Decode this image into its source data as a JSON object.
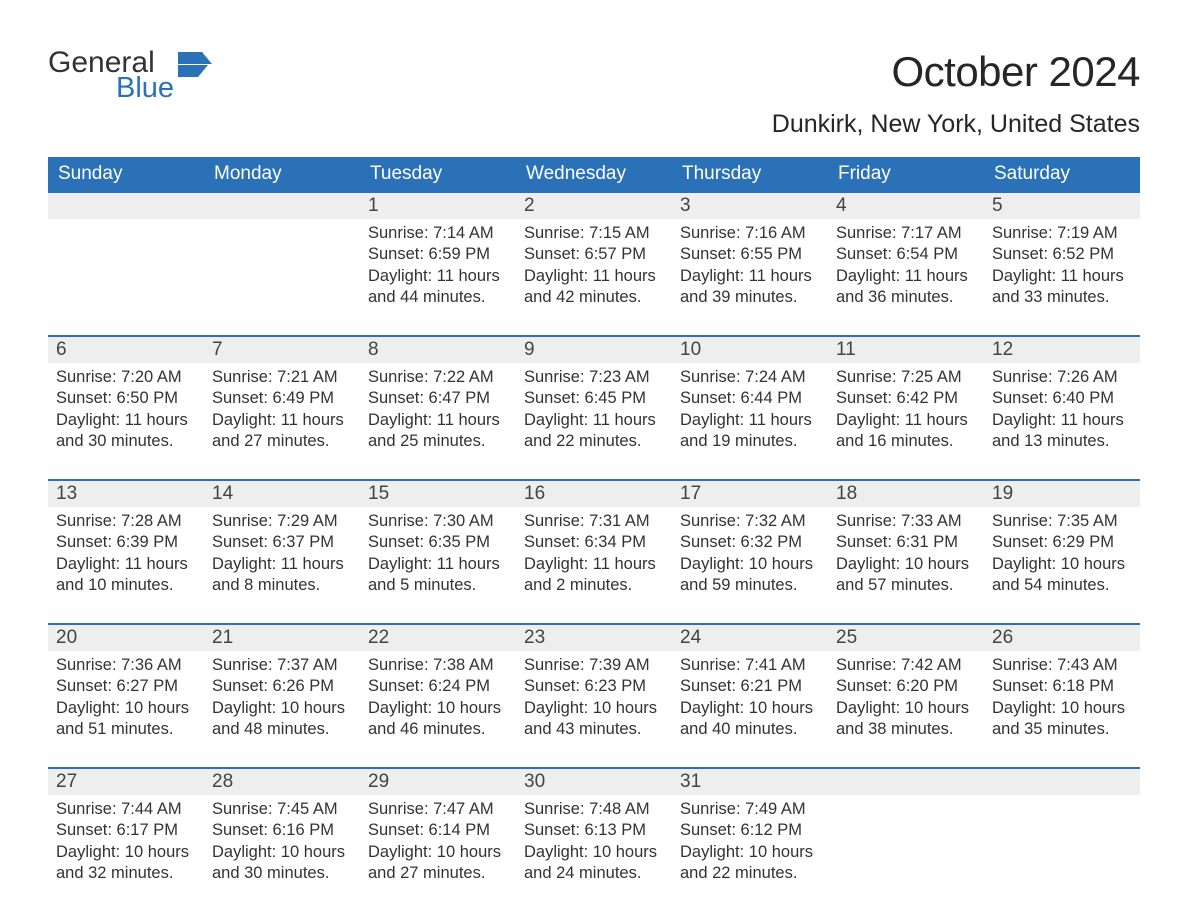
{
  "logo": {
    "general": "General",
    "blue": "Blue"
  },
  "title": "October 2024",
  "location": "Dunkirk, New York, United States",
  "colors": {
    "header_bg": "#2a71b8",
    "header_text": "#ffffff",
    "daynum_bg": "#eeeeee",
    "border": "#2a71b8",
    "text": "#333333",
    "logo_blue": "#2a71b8",
    "background": "#ffffff"
  },
  "font": {
    "family": "Arial",
    "title_size_pt": 32,
    "location_size_pt": 19,
    "header_size_pt": 14,
    "body_size_pt": 12
  },
  "day_names": [
    "Sunday",
    "Monday",
    "Tuesday",
    "Wednesday",
    "Thursday",
    "Friday",
    "Saturday"
  ],
  "labels": {
    "sunrise": "Sunrise:",
    "sunset": "Sunset:",
    "daylight": "Daylight:"
  },
  "weeks": [
    [
      null,
      null,
      {
        "num": "1",
        "sunrise": "7:14 AM",
        "sunset": "6:59 PM",
        "daylight": "11 hours and 44 minutes."
      },
      {
        "num": "2",
        "sunrise": "7:15 AM",
        "sunset": "6:57 PM",
        "daylight": "11 hours and 42 minutes."
      },
      {
        "num": "3",
        "sunrise": "7:16 AM",
        "sunset": "6:55 PM",
        "daylight": "11 hours and 39 minutes."
      },
      {
        "num": "4",
        "sunrise": "7:17 AM",
        "sunset": "6:54 PM",
        "daylight": "11 hours and 36 minutes."
      },
      {
        "num": "5",
        "sunrise": "7:19 AM",
        "sunset": "6:52 PM",
        "daylight": "11 hours and 33 minutes."
      }
    ],
    [
      {
        "num": "6",
        "sunrise": "7:20 AM",
        "sunset": "6:50 PM",
        "daylight": "11 hours and 30 minutes."
      },
      {
        "num": "7",
        "sunrise": "7:21 AM",
        "sunset": "6:49 PM",
        "daylight": "11 hours and 27 minutes."
      },
      {
        "num": "8",
        "sunrise": "7:22 AM",
        "sunset": "6:47 PM",
        "daylight": "11 hours and 25 minutes."
      },
      {
        "num": "9",
        "sunrise": "7:23 AM",
        "sunset": "6:45 PM",
        "daylight": "11 hours and 22 minutes."
      },
      {
        "num": "10",
        "sunrise": "7:24 AM",
        "sunset": "6:44 PM",
        "daylight": "11 hours and 19 minutes."
      },
      {
        "num": "11",
        "sunrise": "7:25 AM",
        "sunset": "6:42 PM",
        "daylight": "11 hours and 16 minutes."
      },
      {
        "num": "12",
        "sunrise": "7:26 AM",
        "sunset": "6:40 PM",
        "daylight": "11 hours and 13 minutes."
      }
    ],
    [
      {
        "num": "13",
        "sunrise": "7:28 AM",
        "sunset": "6:39 PM",
        "daylight": "11 hours and 10 minutes."
      },
      {
        "num": "14",
        "sunrise": "7:29 AM",
        "sunset": "6:37 PM",
        "daylight": "11 hours and 8 minutes."
      },
      {
        "num": "15",
        "sunrise": "7:30 AM",
        "sunset": "6:35 PM",
        "daylight": "11 hours and 5 minutes."
      },
      {
        "num": "16",
        "sunrise": "7:31 AM",
        "sunset": "6:34 PM",
        "daylight": "11 hours and 2 minutes."
      },
      {
        "num": "17",
        "sunrise": "7:32 AM",
        "sunset": "6:32 PM",
        "daylight": "10 hours and 59 minutes."
      },
      {
        "num": "18",
        "sunrise": "7:33 AM",
        "sunset": "6:31 PM",
        "daylight": "10 hours and 57 minutes."
      },
      {
        "num": "19",
        "sunrise": "7:35 AM",
        "sunset": "6:29 PM",
        "daylight": "10 hours and 54 minutes."
      }
    ],
    [
      {
        "num": "20",
        "sunrise": "7:36 AM",
        "sunset": "6:27 PM",
        "daylight": "10 hours and 51 minutes."
      },
      {
        "num": "21",
        "sunrise": "7:37 AM",
        "sunset": "6:26 PM",
        "daylight": "10 hours and 48 minutes."
      },
      {
        "num": "22",
        "sunrise": "7:38 AM",
        "sunset": "6:24 PM",
        "daylight": "10 hours and 46 minutes."
      },
      {
        "num": "23",
        "sunrise": "7:39 AM",
        "sunset": "6:23 PM",
        "daylight": "10 hours and 43 minutes."
      },
      {
        "num": "24",
        "sunrise": "7:41 AM",
        "sunset": "6:21 PM",
        "daylight": "10 hours and 40 minutes."
      },
      {
        "num": "25",
        "sunrise": "7:42 AM",
        "sunset": "6:20 PM",
        "daylight": "10 hours and 38 minutes."
      },
      {
        "num": "26",
        "sunrise": "7:43 AM",
        "sunset": "6:18 PM",
        "daylight": "10 hours and 35 minutes."
      }
    ],
    [
      {
        "num": "27",
        "sunrise": "7:44 AM",
        "sunset": "6:17 PM",
        "daylight": "10 hours and 32 minutes."
      },
      {
        "num": "28",
        "sunrise": "7:45 AM",
        "sunset": "6:16 PM",
        "daylight": "10 hours and 30 minutes."
      },
      {
        "num": "29",
        "sunrise": "7:47 AM",
        "sunset": "6:14 PM",
        "daylight": "10 hours and 27 minutes."
      },
      {
        "num": "30",
        "sunrise": "7:48 AM",
        "sunset": "6:13 PM",
        "daylight": "10 hours and 24 minutes."
      },
      {
        "num": "31",
        "sunrise": "7:49 AM",
        "sunset": "6:12 PM",
        "daylight": "10 hours and 22 minutes."
      },
      null,
      null
    ]
  ]
}
